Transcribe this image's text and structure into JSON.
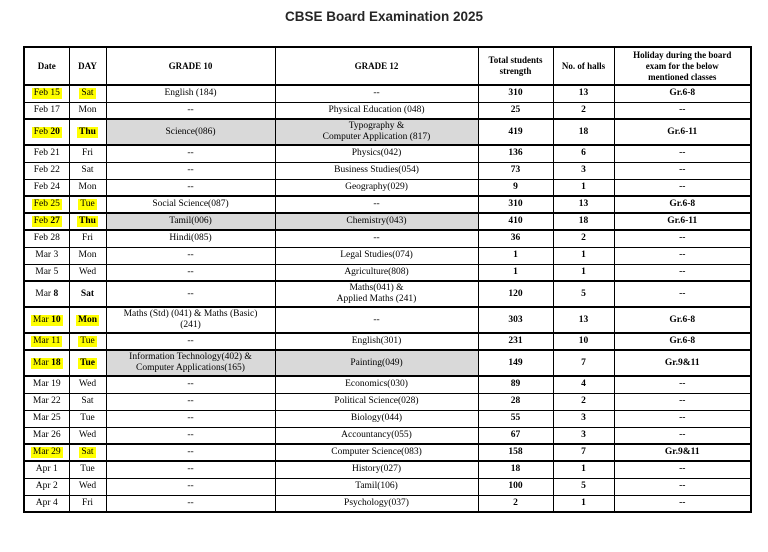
{
  "title": "CBSE Board Examination 2025",
  "colors": {
    "highlight": "#ffff00",
    "shade": "#d9d9d9",
    "border": "#000000"
  },
  "table": {
    "headers": [
      "Date",
      "DAY",
      "GRADE 10",
      "GRADE 12",
      "Total students\nstrength",
      "No. of halls",
      "Holiday during the board\nexam for the below\nmentioned classes"
    ],
    "rows": [
      {
        "month": "Feb",
        "num": "15",
        "num_bold": false,
        "day": "Sat",
        "day_bold": false,
        "highlight": true,
        "shaded": false,
        "thick": false,
        "two_line": false,
        "grade10": "English (184)",
        "grade12": "--",
        "students": "310",
        "halls": "13",
        "holiday": "Gr.6-8"
      },
      {
        "month": "Feb",
        "num": "17",
        "num_bold": false,
        "day": "Mon",
        "day_bold": false,
        "highlight": false,
        "shaded": false,
        "thick": false,
        "two_line": false,
        "grade10": "--",
        "grade12": "Physical Education (048)",
        "students": "25",
        "halls": "2",
        "holiday": "--"
      },
      {
        "month": "Feb",
        "num": "20",
        "num_bold": true,
        "day": "Thu",
        "day_bold": true,
        "highlight": true,
        "shaded": true,
        "thick": true,
        "two_line": true,
        "grade10": "Science(086)",
        "grade12": "Typography &\nComputer Application (817)",
        "students": "419",
        "halls": "18",
        "holiday": "Gr.6-11"
      },
      {
        "month": "Feb",
        "num": "21",
        "num_bold": false,
        "day": "Fri",
        "day_bold": false,
        "highlight": false,
        "shaded": false,
        "thick": false,
        "two_line": false,
        "grade10": "--",
        "grade12": "Physics(042)",
        "students": "136",
        "halls": "6",
        "holiday": "--"
      },
      {
        "month": "Feb",
        "num": "22",
        "num_bold": false,
        "day": "Sat",
        "day_bold": false,
        "highlight": false,
        "shaded": false,
        "thick": false,
        "two_line": false,
        "grade10": "--",
        "grade12": "Business Studies(054)",
        "students": "73",
        "halls": "3",
        "holiday": "--"
      },
      {
        "month": "Feb",
        "num": "24",
        "num_bold": false,
        "day": "Mon",
        "day_bold": false,
        "highlight": false,
        "shaded": false,
        "thick": false,
        "two_line": false,
        "grade10": "--",
        "grade12": "Geography(029)",
        "students": "9",
        "halls": "1",
        "holiday": "--"
      },
      {
        "month": "Feb",
        "num": "25",
        "num_bold": false,
        "day": "Tue",
        "day_bold": false,
        "highlight": true,
        "shaded": false,
        "thick": true,
        "two_line": false,
        "grade10": "Social Science(087)",
        "grade12": "--",
        "students": "310",
        "halls": "13",
        "holiday": "Gr.6-8"
      },
      {
        "month": "Feb",
        "num": "27",
        "num_bold": true,
        "day": "Thu",
        "day_bold": true,
        "highlight": true,
        "shaded": true,
        "thick": true,
        "two_line": false,
        "grade10": "Tamil(006)",
        "grade12": "Chemistry(043)",
        "students": "410",
        "halls": "18",
        "holiday": "Gr.6-11"
      },
      {
        "month": "Feb",
        "num": "28",
        "num_bold": false,
        "day": "Fri",
        "day_bold": false,
        "highlight": false,
        "shaded": false,
        "thick": false,
        "two_line": false,
        "grade10": "Hindi(085)",
        "grade12": "--",
        "students": "36",
        "halls": "2",
        "holiday": "--"
      },
      {
        "month": "Mar",
        "num": "3",
        "num_bold": false,
        "day": "Mon",
        "day_bold": false,
        "highlight": false,
        "shaded": false,
        "thick": false,
        "two_line": false,
        "grade10": "--",
        "grade12": "Legal Studies(074)",
        "students": "1",
        "halls": "1",
        "holiday": "--"
      },
      {
        "month": "Mar",
        "num": "5",
        "num_bold": false,
        "day": "Wed",
        "day_bold": false,
        "highlight": false,
        "shaded": false,
        "thick": false,
        "two_line": false,
        "grade10": "--",
        "grade12": "Agriculture(808)",
        "students": "1",
        "halls": "1",
        "holiday": "--"
      },
      {
        "month": "Mar",
        "num": "8",
        "num_bold": true,
        "day": "Sat",
        "day_bold": true,
        "highlight": false,
        "shaded": false,
        "thick": true,
        "two_line": true,
        "grade10": "--",
        "grade12": "Maths(041) &\nApplied Maths (241)",
        "students": "120",
        "halls": "5",
        "holiday": "--"
      },
      {
        "month": "Mar",
        "num": "10",
        "num_bold": true,
        "day": "Mon",
        "day_bold": true,
        "highlight": true,
        "shaded": false,
        "thick": true,
        "two_line": true,
        "grade10": "Maths (Std) (041) & Maths (Basic)\n(241)",
        "grade12": "--",
        "students": "303",
        "halls": "13",
        "holiday": "Gr.6-8"
      },
      {
        "month": "Mar",
        "num": "11",
        "num_bold": false,
        "day": "Tue",
        "day_bold": false,
        "highlight": true,
        "shaded": false,
        "thick": true,
        "two_line": false,
        "grade10": "--",
        "grade12": "English(301)",
        "students": "231",
        "halls": "10",
        "holiday": "Gr.6-8"
      },
      {
        "month": "Mar",
        "num": "18",
        "num_bold": true,
        "day": "Tue",
        "day_bold": true,
        "highlight": true,
        "shaded": true,
        "thick": true,
        "two_line": true,
        "grade10": "Information Technology(402) &\nComputer Applications(165)",
        "grade12": "Painting(049)",
        "students": "149",
        "halls": "7",
        "holiday": "Gr.9&11"
      },
      {
        "month": "Mar",
        "num": "19",
        "num_bold": false,
        "day": "Wed",
        "day_bold": false,
        "highlight": false,
        "shaded": false,
        "thick": false,
        "two_line": false,
        "grade10": "--",
        "grade12": "Economics(030)",
        "students": "89",
        "halls": "4",
        "holiday": "--"
      },
      {
        "month": "Mar",
        "num": "22",
        "num_bold": false,
        "day": "Sat",
        "day_bold": false,
        "highlight": false,
        "shaded": false,
        "thick": false,
        "two_line": false,
        "grade10": "--",
        "grade12": "Political Science(028)",
        "students": "28",
        "halls": "2",
        "holiday": "--"
      },
      {
        "month": "Mar",
        "num": "25",
        "num_bold": false,
        "day": "Tue",
        "day_bold": false,
        "highlight": false,
        "shaded": false,
        "thick": false,
        "two_line": false,
        "grade10": "--",
        "grade12": "Biology(044)",
        "students": "55",
        "halls": "3",
        "holiday": "--"
      },
      {
        "month": "Mar",
        "num": "26",
        "num_bold": false,
        "day": "Wed",
        "day_bold": false,
        "highlight": false,
        "shaded": false,
        "thick": false,
        "two_line": false,
        "grade10": "--",
        "grade12": "Accountancy(055)",
        "students": "67",
        "halls": "3",
        "holiday": "--"
      },
      {
        "month": "Mar",
        "num": "29",
        "num_bold": false,
        "day": "Sat",
        "day_bold": false,
        "highlight": true,
        "shaded": false,
        "thick": true,
        "two_line": false,
        "grade10": "--",
        "grade12": "Computer Science(083)",
        "students": "158",
        "halls": "7",
        "holiday": "Gr.9&11"
      },
      {
        "month": "Apr",
        "num": "1",
        "num_bold": false,
        "day": "Tue",
        "day_bold": false,
        "highlight": false,
        "shaded": false,
        "thick": false,
        "two_line": false,
        "grade10": "--",
        "grade12": "History(027)",
        "students": "18",
        "halls": "1",
        "holiday": "--"
      },
      {
        "month": "Apr",
        "num": "2",
        "num_bold": false,
        "day": "Wed",
        "day_bold": false,
        "highlight": false,
        "shaded": false,
        "thick": false,
        "two_line": false,
        "grade10": "--",
        "grade12": "Tamil(106)",
        "students": "100",
        "halls": "5",
        "holiday": "--"
      },
      {
        "month": "Apr",
        "num": "4",
        "num_bold": false,
        "day": "Fri",
        "day_bold": false,
        "highlight": false,
        "shaded": false,
        "thick": false,
        "two_line": false,
        "grade10": "--",
        "grade12": "Psychology(037)",
        "students": "2",
        "halls": "1",
        "holiday": "--"
      }
    ]
  }
}
